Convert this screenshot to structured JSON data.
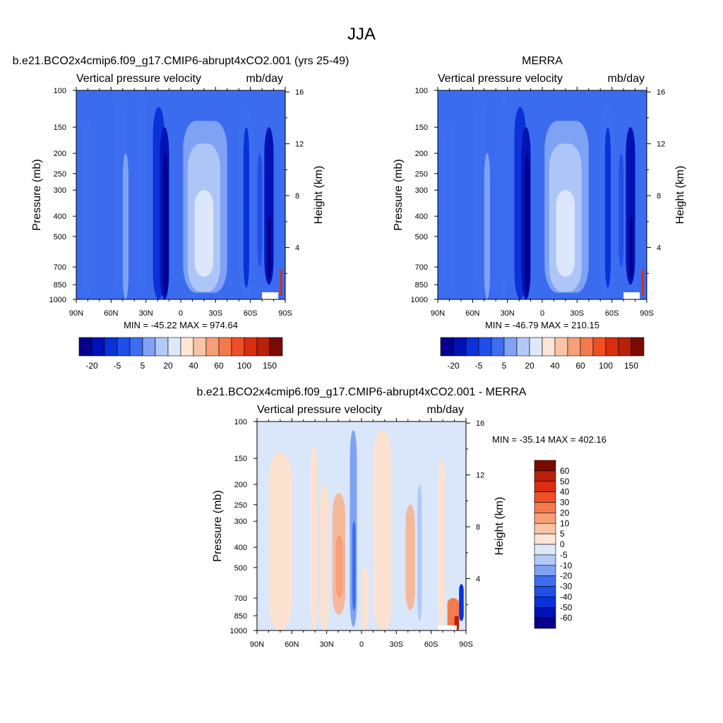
{
  "figure": {
    "title": "JJA"
  },
  "colors": {
    "c_m6": "#06008c",
    "c_m5": "#0012b4",
    "c_m4": "#0a32d8",
    "c_m3": "#1f4fe8",
    "c_m2": "#3d6ef0",
    "c_m1": "#7fa2f5",
    "c_0": "#b3c9f8",
    "c_1": "#dfe8fb",
    "c_2": "#fde6d6",
    "c_3": "#f9c4a6",
    "c_4": "#f79f77",
    "c_5": "#f47a4b",
    "c_6": "#f04e24",
    "c_7": "#d92e0f",
    "c_8": "#b8200a",
    "c_9": "#7a0b00",
    "diff_field": "#dae6fa",
    "diff_pos": "#fbe2d0",
    "diff_pos2": "#f6b89a",
    "mean_field": "#3b6cf0",
    "mean_light": "#aec6f7",
    "mean_lighter": "#dce7fb"
  },
  "chart_data": [
    {
      "type": "heatmap",
      "title": "b.e21.BCO2x4cmip6.f09_g17.CMIP6-abrupt4xCO2.001 (yrs 25-49)",
      "left_string": "Vertical pressure velocity",
      "right_string": "mb/day",
      "x_ticks": [
        "90N",
        "60N",
        "30N",
        "0",
        "30S",
        "60S",
        "90S"
      ],
      "x_values": [
        90,
        60,
        30,
        0,
        -30,
        -60,
        -90
      ],
      "y_label": "Pressure (mb)",
      "y_ticks": [
        "100",
        "150",
        "200",
        "250",
        "300",
        "400",
        "500",
        "700",
        "850",
        "1000"
      ],
      "y_values": [
        100,
        150,
        200,
        250,
        300,
        400,
        500,
        700,
        850,
        1000
      ],
      "y_scale": "log",
      "y2_label": "Height (km)",
      "y2_ticks": [
        "16",
        "12",
        "8",
        "4"
      ],
      "stats": "MIN = -45.22  MAX = 974.64",
      "min": -45.22,
      "max": 974.64,
      "colorbar_orientation": "horizontal",
      "colorbar_labels": [
        "-20",
        "-5",
        "5",
        "20",
        "40",
        "60",
        "100",
        "150"
      ]
    },
    {
      "type": "heatmap",
      "title": "MERRA",
      "left_string": "Vertical pressure velocity",
      "right_string": "mb/day",
      "x_ticks": [
        "90N",
        "60N",
        "30N",
        "0",
        "30S",
        "60S",
        "90S"
      ],
      "x_values": [
        90,
        60,
        30,
        0,
        -30,
        -60,
        -90
      ],
      "y_label": "Pressure (mb)",
      "y_ticks": [
        "100",
        "150",
        "200",
        "250",
        "300",
        "400",
        "500",
        "700",
        "850",
        "1000"
      ],
      "y_values": [
        100,
        150,
        200,
        250,
        300,
        400,
        500,
        700,
        850,
        1000
      ],
      "y_scale": "log",
      "y2_label": "Height (km)",
      "y2_ticks": [
        "16",
        "12",
        "8",
        "4"
      ],
      "stats": "MIN = -46.79  MAX = 210.15",
      "min": -46.79,
      "max": 210.15,
      "colorbar_orientation": "horizontal",
      "colorbar_labels": [
        "-20",
        "-5",
        "5",
        "20",
        "40",
        "60",
        "100",
        "150"
      ]
    },
    {
      "type": "heatmap",
      "title": "b.e21.BCO2x4cmip6.f09_g17.CMIP6-abrupt4xCO2.001 - MERRA",
      "left_string": "Vertical pressure velocity",
      "right_string": "mb/day",
      "x_ticks": [
        "90N",
        "60N",
        "30N",
        "0",
        "30S",
        "60S",
        "90S"
      ],
      "x_values": [
        90,
        60,
        30,
        0,
        -30,
        -60,
        -90
      ],
      "y_label": "Pressure (mb)",
      "y_ticks": [
        "100",
        "150",
        "200",
        "250",
        "300",
        "400",
        "500",
        "700",
        "850",
        "1000"
      ],
      "y_values": [
        100,
        150,
        200,
        250,
        300,
        400,
        500,
        700,
        850,
        1000
      ],
      "y_scale": "log",
      "y2_label": "Height (km)",
      "y2_ticks": [
        "16",
        "12",
        "8",
        "4"
      ],
      "stats": "MIN = -35.14  MAX = 402.16",
      "min": -35.14,
      "max": 402.16,
      "colorbar_orientation": "vertical",
      "colorbar_labels": [
        "60",
        "50",
        "40",
        "30",
        "20",
        "10",
        "5",
        "0",
        "-5",
        "-10",
        "-20",
        "-30",
        "-40",
        "-50",
        "-60"
      ]
    }
  ]
}
